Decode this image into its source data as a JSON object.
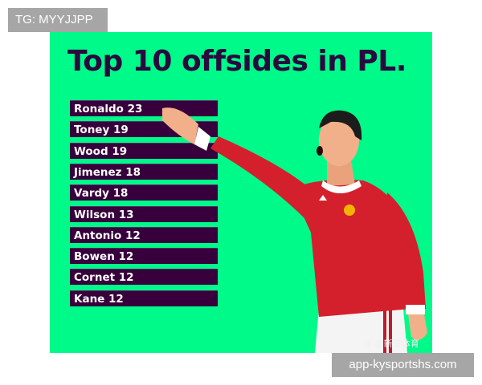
{
  "watermark_top": "TG: MYYJJPP",
  "watermark_bottom": "app-kysportshs.com",
  "poster": {
    "title": "Top 10 offsides in PL.",
    "players": [
      {
        "name": "Ronaldo",
        "offsides": 23
      },
      {
        "name": "Toney",
        "offsides": 19
      },
      {
        "name": "Wood",
        "offsides": 19
      },
      {
        "name": "Jimenez",
        "offsides": 18
      },
      {
        "name": "Vardy",
        "offsides": 18
      },
      {
        "name": "Wilson",
        "offsides": 13
      },
      {
        "name": "Antonio",
        "offsides": 12
      },
      {
        "name": "Bowen",
        "offsides": 12
      },
      {
        "name": "Cornet",
        "offsides": 12
      },
      {
        "name": "Kane",
        "offsides": 12
      }
    ],
    "source_logo": "@新浪体育",
    "colors": {
      "background": "#00fa8a",
      "bar": "#37003c",
      "title": "#2a0a3e",
      "shirt": "#d4202c"
    }
  }
}
